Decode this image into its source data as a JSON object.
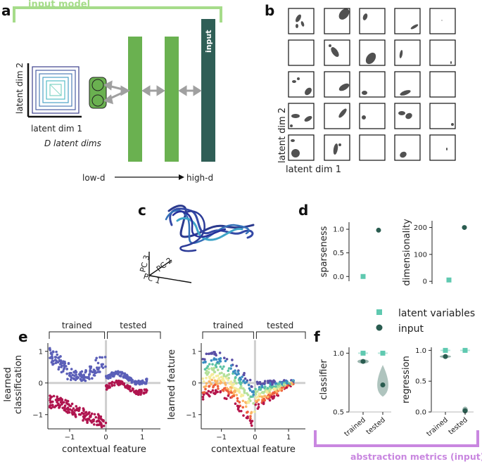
{
  "panel_labels": {
    "a": "a",
    "b": "b",
    "c": "c",
    "d": "d",
    "e": "e",
    "f": "f"
  },
  "panel_a": {
    "banner": "input model",
    "input_layer": "input",
    "latent_dim_1": "latent dim 1",
    "latent_dim_2": "latent dim 2",
    "d_latent_dims": "D latent dims",
    "low_d": "low-d",
    "high_d": "high-d"
  },
  "panel_b": {
    "latent_dim_1": "latent dim 1",
    "latent_dim_2": "latent dim 2"
  },
  "panel_c": {
    "pc1": "PC 1",
    "pc2": "PC 2",
    "pc3": "PC 3"
  },
  "panel_d": {
    "sparseness": {
      "ylabel": "sparseness",
      "ticks": [
        "0.0",
        "0.5",
        "1.0"
      ]
    },
    "dimensionality": {
      "ylabel": "dimensionality",
      "ticks": [
        "0",
        "100",
        "200"
      ]
    }
  },
  "legend": {
    "latent": "latent variables",
    "input": "input"
  },
  "panel_e": {
    "left": {
      "header_trained": "trained",
      "header_tested": "tested",
      "ylabel_1": "learned",
      "ylabel_2": "classification",
      "xlabel": "contextual feature",
      "yticks": [
        "1",
        "0",
        "-1"
      ],
      "xticks": [
        "-1",
        "0",
        "1"
      ]
    },
    "right": {
      "header_trained": "trained",
      "header_tested": "tested",
      "ylabel": "learned feature",
      "xlabel": "contextual feature",
      "yticks": [
        "1",
        "0",
        "-1"
      ],
      "xticks": [
        "-1",
        "0",
        "1"
      ]
    }
  },
  "panel_f": {
    "classifier": {
      "ylabel": "classifier",
      "yticks": [
        "1.0",
        "0.5"
      ],
      "xticks": [
        "trained",
        "tested"
      ]
    },
    "regression": {
      "ylabel": "regression",
      "yticks": [
        "1.0",
        "0.5",
        "0.0"
      ],
      "xticks": [
        "trained",
        "tested"
      ]
    },
    "footer": "abstraction metrics (input)"
  },
  "colors": {
    "latent": "#5fc9b0",
    "input": "#2a5c50",
    "banner_green": "#a6dc8a",
    "footer_purple": "#c987e0",
    "layer_green": "#6ab150",
    "input_layer": "#2f5e56",
    "arrow": "#a0a0a0"
  },
  "chart_data": [
    {
      "type": "scatter",
      "title": "sparseness",
      "series": [
        {
          "name": "latent variables",
          "x": [
            0
          ],
          "y": [
            0.0
          ]
        },
        {
          "name": "input",
          "x": [
            1
          ],
          "y": [
            0.98
          ]
        }
      ],
      "ylim": [
        -0.1,
        1.15
      ]
    },
    {
      "type": "scatter",
      "title": "dimensionality",
      "series": [
        {
          "name": "latent variables",
          "x": [
            0
          ],
          "y": [
            5
          ]
        },
        {
          "name": "input",
          "x": [
            1
          ],
          "y": [
            200
          ]
        }
      ],
      "ylim": [
        -10,
        225
      ]
    },
    {
      "type": "scatter",
      "title": "classifier",
      "categories": [
        "trained",
        "tested"
      ],
      "series": [
        {
          "name": "latent variables",
          "values": [
            1.0,
            1.0
          ]
        },
        {
          "name": "input",
          "values": [
            0.93,
            0.73
          ]
        }
      ],
      "ylim": [
        0.5,
        1.05
      ]
    },
    {
      "type": "scatter",
      "title": "regression",
      "categories": [
        "trained",
        "tested"
      ],
      "series": [
        {
          "name": "latent variables",
          "values": [
            1.0,
            1.0
          ]
        },
        {
          "name": "input",
          "values": [
            0.9,
            0.02
          ]
        }
      ],
      "ylim": [
        0.0,
        1.05
      ]
    }
  ]
}
